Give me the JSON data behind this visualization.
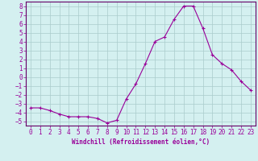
{
  "x": [
    0,
    1,
    2,
    3,
    4,
    5,
    6,
    7,
    8,
    9,
    10,
    11,
    12,
    13,
    14,
    15,
    16,
    17,
    18,
    19,
    20,
    21,
    22,
    23
  ],
  "y": [
    -3.5,
    -3.5,
    -3.8,
    -4.2,
    -4.5,
    -4.5,
    -4.5,
    -4.7,
    -5.2,
    -4.9,
    -2.5,
    -0.8,
    1.5,
    4.0,
    4.5,
    6.5,
    8.0,
    8.0,
    5.5,
    2.5,
    1.5,
    0.8,
    -0.5,
    -1.5
  ],
  "line_color": "#990099",
  "marker": "+",
  "marker_size": 3,
  "bg_color": "#d4f0f0",
  "grid_color": "#aacccc",
  "xlabel": "Windchill (Refroidissement éolien,°C)",
  "xlim": [
    -0.5,
    23.5
  ],
  "ylim": [
    -5.5,
    8.5
  ],
  "yticks": [
    -5,
    -4,
    -3,
    -2,
    -1,
    0,
    1,
    2,
    3,
    4,
    5,
    6,
    7,
    8
  ],
  "xticks": [
    0,
    1,
    2,
    3,
    4,
    5,
    6,
    7,
    8,
    9,
    10,
    11,
    12,
    13,
    14,
    15,
    16,
    17,
    18,
    19,
    20,
    21,
    22,
    23
  ],
  "axis_color": "#660066",
  "tick_color": "#990099",
  "label_color": "#990099",
  "tick_fontsize": 5.5,
  "xlabel_fontsize": 5.5
}
